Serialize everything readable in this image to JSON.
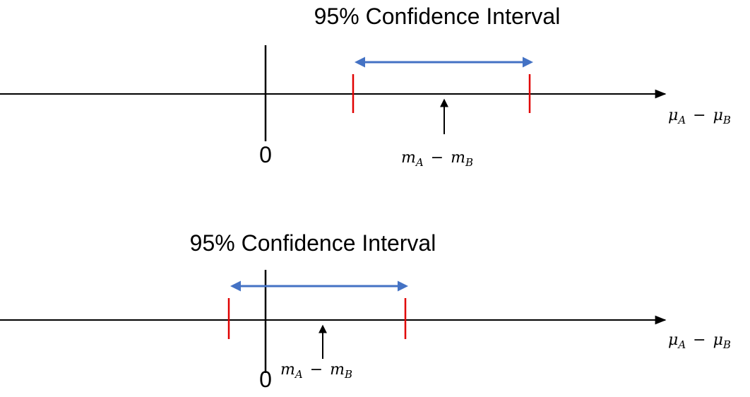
{
  "colors": {
    "axis": "#000000",
    "interval_arrow": "#4472C4",
    "bound_marker": "#E00000"
  },
  "panels": [
    {
      "title": "95% Confidence Interval",
      "zero_label": "0",
      "axis_label": {
        "mu": "μ",
        "sub_a": "A",
        "minus": "−",
        "mu2": "μ",
        "sub_b": "B"
      },
      "estimate_label": {
        "m": "m",
        "sub_a": "A",
        "minus": "−",
        "m2": "m",
        "sub_b": "B"
      }
    },
    {
      "title": "95% Confidence Interval",
      "zero_label": "0",
      "axis_label": {
        "mu": "μ",
        "sub_a": "A",
        "minus": "−",
        "mu2": "μ",
        "sub_b": "B"
      },
      "estimate_label": {
        "m": "m",
        "sub_a": "A",
        "minus": "−",
        "m2": "m",
        "sub_b": "B"
      }
    }
  ]
}
